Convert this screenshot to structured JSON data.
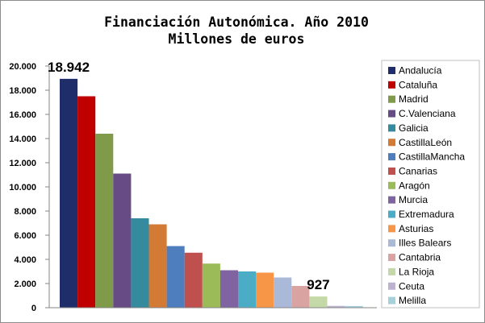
{
  "chart_data": {
    "type": "bar",
    "title": "Financiación Autonómica. Año 2010",
    "subtitle": "Millones de euros",
    "xlabel": "",
    "ylabel": "",
    "ylim": [
      0,
      20000
    ],
    "yticks": [
      0,
      2000,
      4000,
      6000,
      8000,
      10000,
      12000,
      14000,
      16000,
      18000,
      20000
    ],
    "ytick_labels": [
      "0",
      "2.000",
      "4.000",
      "6.000",
      "8.000",
      "10.000",
      "12.000",
      "14.000",
      "16.000",
      "18.000",
      "20.000"
    ],
    "grid": false,
    "legend_position": "right",
    "series": [
      {
        "name": "Andalucía",
        "value": 18942,
        "color": "#1f2d6b"
      },
      {
        "name": "Cataluña",
        "value": 17500,
        "color": "#c00000"
      },
      {
        "name": "Madrid",
        "value": 14400,
        "color": "#7f9a48"
      },
      {
        "name": "C.Valenciana",
        "value": 11100,
        "color": "#664b84"
      },
      {
        "name": "Galicia",
        "value": 7400,
        "color": "#358a9e"
      },
      {
        "name": "CastillaLeón",
        "value": 6900,
        "color": "#d37a35"
      },
      {
        "name": "CastillaMancha",
        "value": 5100,
        "color": "#4f7ebf"
      },
      {
        "name": "Canarias",
        "value": 4550,
        "color": "#c0504d"
      },
      {
        "name": "Aragón",
        "value": 3650,
        "color": "#9bbb59"
      },
      {
        "name": "Murcia",
        "value": 3100,
        "color": "#8064a2"
      },
      {
        "name": "Extremadura",
        "value": 3000,
        "color": "#4bacc6"
      },
      {
        "name": "Asturias",
        "value": 2900,
        "color": "#f79646"
      },
      {
        "name": "Illes Balears",
        "value": 2500,
        "color": "#aab9d8"
      },
      {
        "name": "Cantabria",
        "value": 1800,
        "color": "#d9a3a2"
      },
      {
        "name": "La Rioja",
        "value": 927,
        "color": "#c5d9a8"
      },
      {
        "name": "Ceuta",
        "value": 150,
        "color": "#bdb2cf"
      },
      {
        "name": "Melilla",
        "value": 140,
        "color": "#a6d0db"
      }
    ],
    "annotations": [
      {
        "series_index": 0,
        "text": "18.942"
      },
      {
        "series_index": 14,
        "text": "927"
      }
    ]
  }
}
